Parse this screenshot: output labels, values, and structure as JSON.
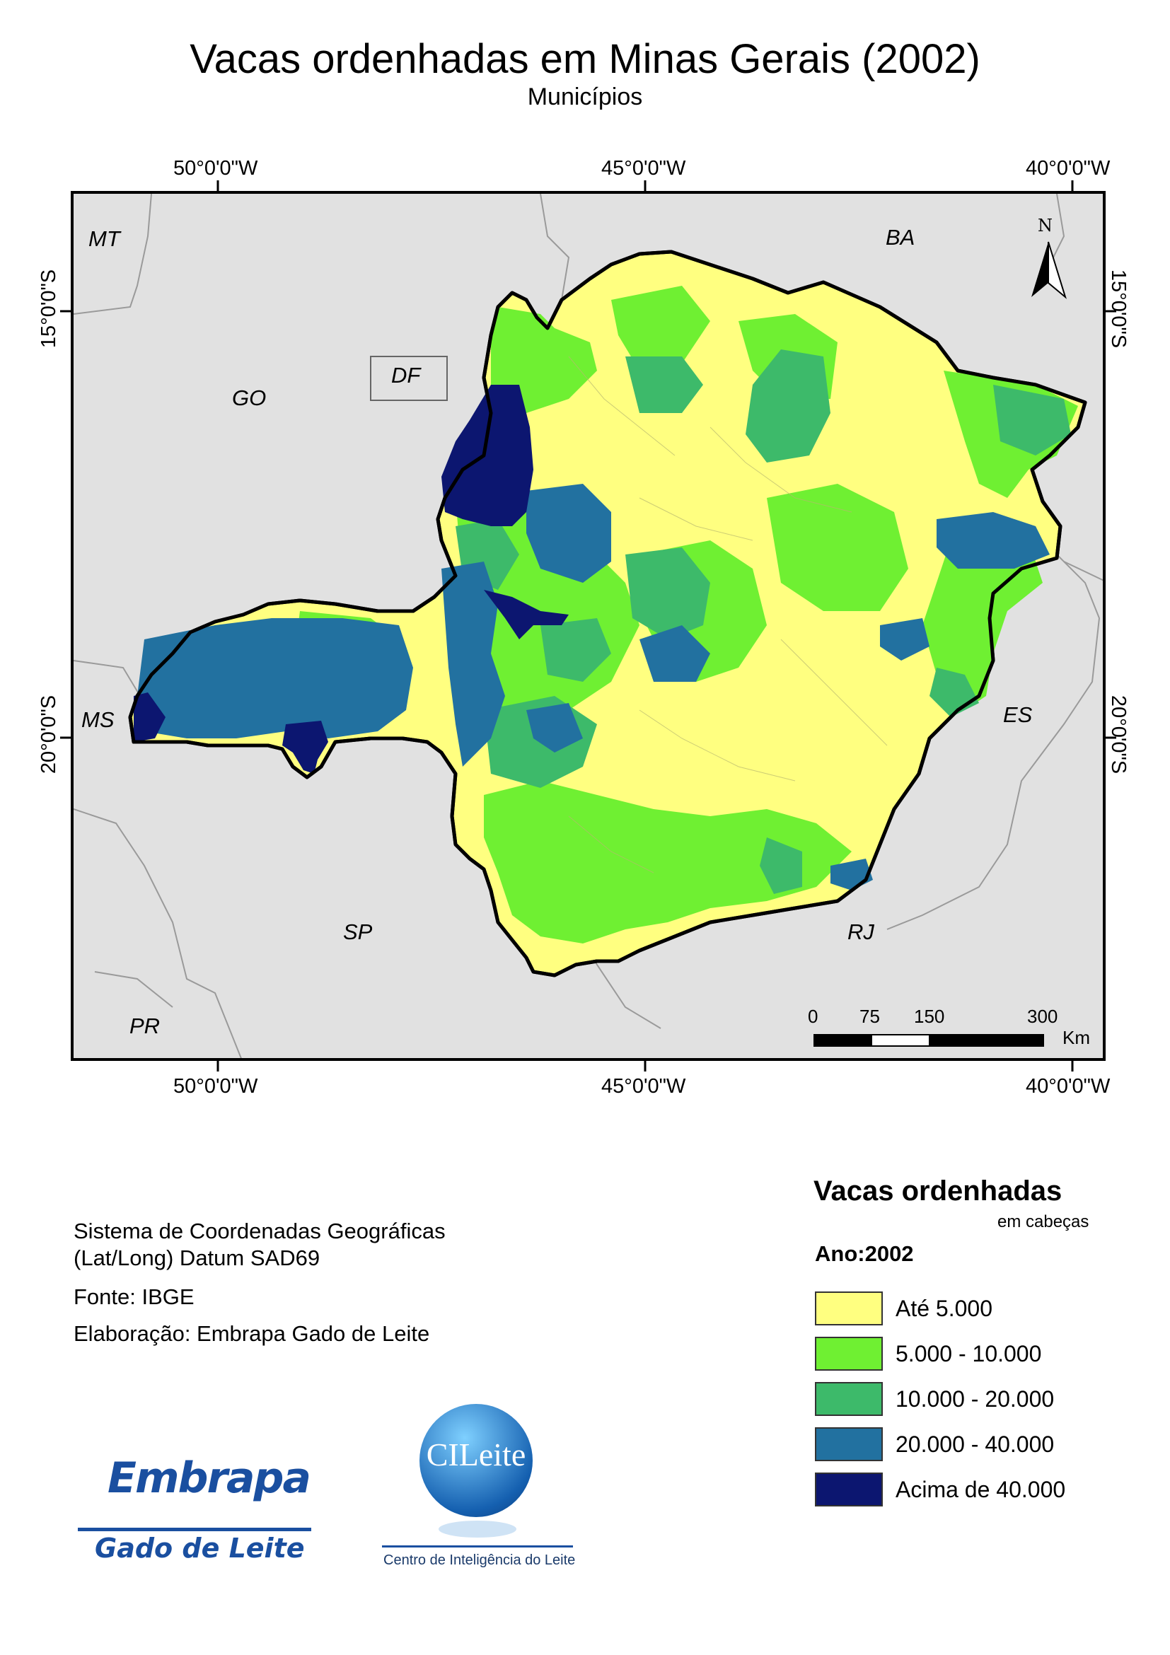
{
  "title": "Vacas ordenhadas em Minas Gerais (2002)",
  "subtitle": "Municípios",
  "grid": {
    "lon_labels": [
      "50°0'0\"W",
      "45°0'0\"W",
      "40°0'0\"W"
    ],
    "lat_labels": [
      "15°0'0\"S",
      "20°0'0\"S"
    ]
  },
  "states": [
    "MT",
    "BA",
    "GO",
    "DF",
    "MS",
    "ES",
    "SP",
    "RJ",
    "PR"
  ],
  "north_arrow": "N",
  "scale": {
    "ticks": [
      "0",
      "75",
      "150",
      "300"
    ],
    "unit": "Km"
  },
  "info": {
    "coords_line1": "Sistema de Coordenadas Geográficas",
    "coords_line2": "(Lat/Long) Datum SAD69",
    "source": "Fonte: IBGE",
    "author": "Elaboração: Embrapa Gado de Leite"
  },
  "legend": {
    "title": "Vacas ordenhadas",
    "unit": "em cabeças",
    "year": "Ano:2002",
    "classes": [
      {
        "label": "Até 5.000",
        "color": "#ffff80"
      },
      {
        "label": "5.000 - 10.000",
        "color": "#6ff032"
      },
      {
        "label": "10.000 - 20.000",
        "color": "#3dba6a"
      },
      {
        "label": "20.000 - 40.000",
        "color": "#2271a0"
      },
      {
        "label": "Acima de 40.000",
        "color": "#0c1670"
      }
    ]
  },
  "logos": {
    "embrapa_word": "Embrapa",
    "embrapa_sub": "Gado de Leite",
    "cil_word": "CILeite",
    "cil_sub": "Centro de Inteligência do Leite"
  },
  "colors": {
    "background_states": "#e1e1e1",
    "border": "#000000"
  }
}
